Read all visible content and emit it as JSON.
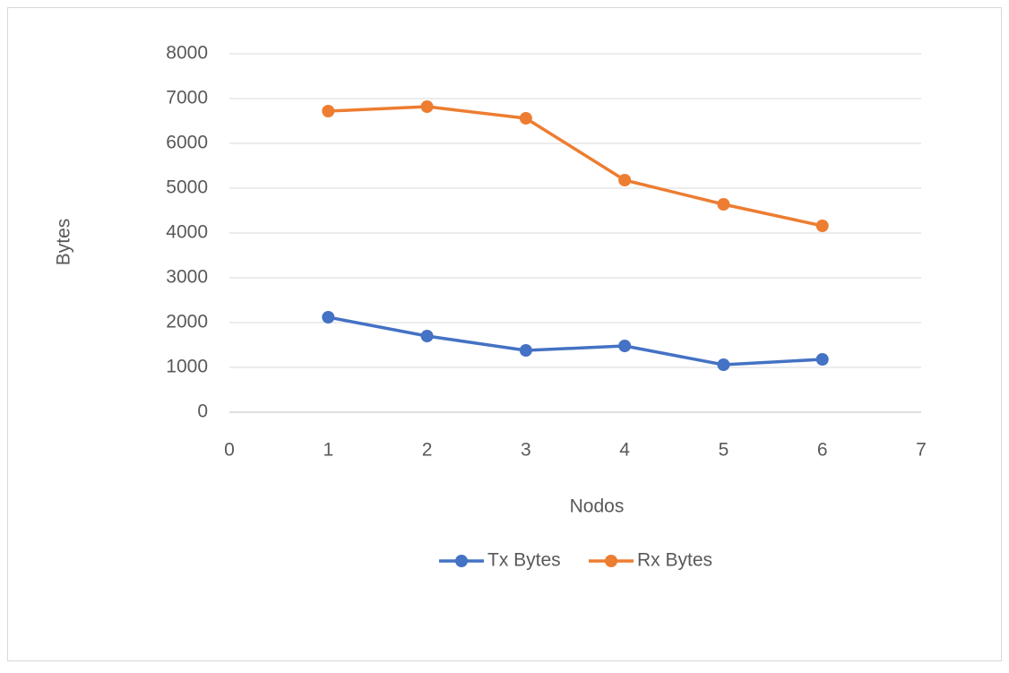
{
  "chart_data": {
    "type": "line",
    "x_label": "Nodos",
    "y_label": "Bytes",
    "x": [
      1,
      2,
      3,
      4,
      5,
      6
    ],
    "series": [
      {
        "name": "Tx Bytes",
        "color": "#4472c4",
        "values": [
          2120,
          1700,
          1380,
          1480,
          1060,
          1180
        ]
      },
      {
        "name": "Rx Bytes",
        "color": "#ed7d31",
        "values": [
          6720,
          6820,
          6560,
          5180,
          4640,
          4160
        ]
      }
    ],
    "xlim": [
      0,
      7
    ],
    "xticks": [
      0,
      1,
      2,
      3,
      4,
      5,
      6,
      7
    ],
    "ylim": [
      0,
      8000
    ],
    "yticks": [
      0,
      1000,
      2000,
      3000,
      4000,
      5000,
      6000,
      7000,
      8000
    ],
    "grid": true,
    "legend": "bottom"
  }
}
